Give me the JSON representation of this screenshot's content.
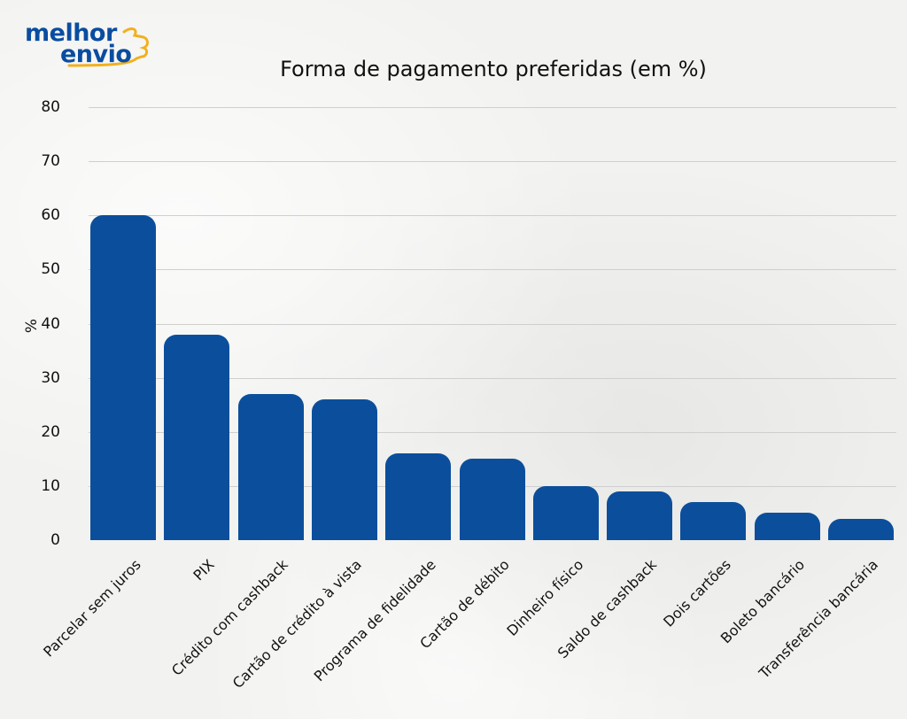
{
  "logo": {
    "line1": "melhor",
    "line2": "envio",
    "primary_color": "#0a4da0",
    "accent_color": "#f2b01e"
  },
  "chart_data": {
    "type": "bar",
    "title": "Forma de pagamento preferidas (em %)",
    "xlabel": "",
    "ylabel": "%",
    "ylim": [
      0,
      80
    ],
    "yticks": [
      0,
      10,
      20,
      30,
      40,
      50,
      60,
      70,
      80
    ],
    "grid": true,
    "legend": null,
    "bar_color": "#0b4f9c",
    "categories": [
      "Parcelar sem juros",
      "PIX",
      "Crédito com cashback",
      "Cartão de crédito à vista",
      "Programa de fidelidade",
      "Cartão de débito",
      "Dinheiro físico",
      "Saldo de cashback",
      "Dois cartões",
      "Boleto bancário",
      "Transferência bancária"
    ],
    "values": [
      60,
      38,
      27,
      26,
      16,
      15,
      10,
      9,
      7,
      5,
      4
    ]
  }
}
